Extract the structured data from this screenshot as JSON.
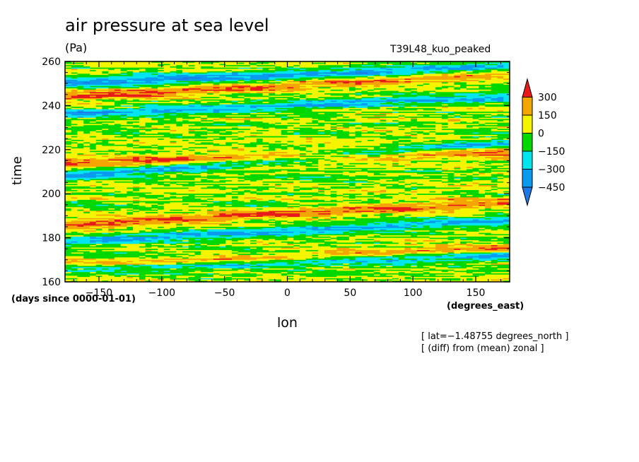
{
  "title": "air pressure at sea level",
  "units": "(Pa)",
  "run_label": "T39L48_kuo_peaked",
  "note_lat": "[ lat=−1.48755 degrees_north ]",
  "note_diff": "[ (diff) from (mean) zonal ]",
  "chart_data": {
    "type": "heatmap",
    "xlabel": "lon",
    "xunits": "(degrees_east)",
    "ylabel": "time",
    "yunits": "(days since 0000-01-01)",
    "xlim": [
      -177,
      177
    ],
    "ylim": [
      160,
      260
    ],
    "x_ticks": [
      -150,
      -100,
      -50,
      0,
      50,
      100,
      150
    ],
    "x_tick_labels": [
      "−150",
      "−100",
      "−50",
      "0",
      "50",
      "100",
      "150"
    ],
    "y_ticks": [
      160,
      180,
      200,
      220,
      240,
      260
    ],
    "y_tick_labels": [
      "160",
      "180",
      "200",
      "220",
      "240",
      "260"
    ],
    "colorbar": {
      "levels": [
        -450,
        -300,
        -150,
        0,
        150,
        300
      ],
      "level_labels": [
        "−450",
        "−300",
        "−150",
        "0",
        "150",
        "300"
      ],
      "colors": [
        "#1e78e6",
        "#0a9bf0",
        "#00e5ee",
        "#00d800",
        "#f5f500",
        "#f5a500",
        "#e81a1a"
      ],
      "extend": "both"
    },
    "features": [
      {
        "type": "band",
        "sign": "negative",
        "t_at_min_lon": 250,
        "t_at_max_lon": 258
      },
      {
        "type": "band",
        "sign": "negative",
        "t_at_min_lon": 236,
        "t_at_max_lon": 244
      },
      {
        "type": "band",
        "sign": "negative",
        "t_at_min_lon": 208,
        "t_at_max_lon": 223
      },
      {
        "type": "band",
        "sign": "negative",
        "t_at_min_lon": 178,
        "t_at_max_lon": 188
      },
      {
        "type": "band",
        "sign": "negative",
        "t_at_min_lon": 166,
        "t_at_max_lon": 172
      },
      {
        "type": "band",
        "sign": "positive",
        "t_at_min_lon": 244,
        "t_at_max_lon": 254
      },
      {
        "type": "band",
        "sign": "positive",
        "t_at_min_lon": 214,
        "t_at_max_lon": 219
      },
      {
        "type": "band",
        "sign": "positive",
        "t_at_min_lon": 186,
        "t_at_max_lon": 196
      },
      {
        "type": "band",
        "sign": "positive",
        "t_at_min_lon": 167,
        "t_at_max_lon": 175
      }
    ]
  }
}
